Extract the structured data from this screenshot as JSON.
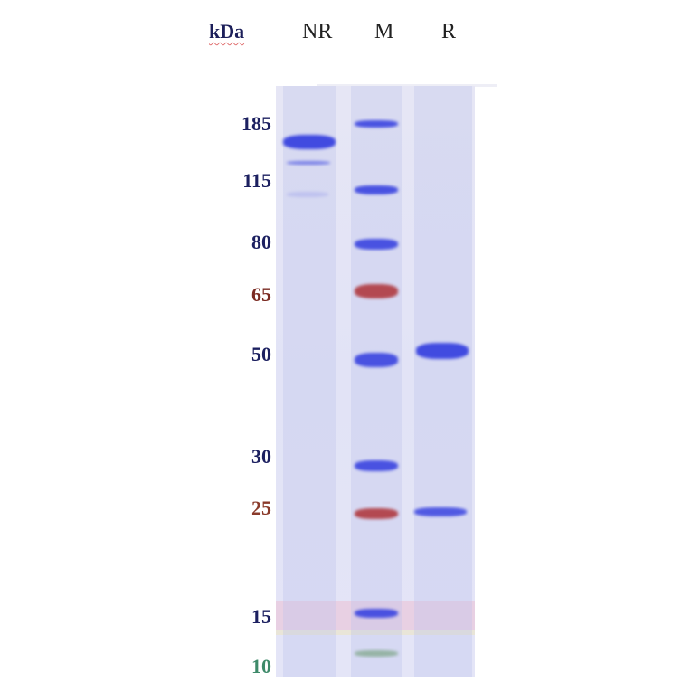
{
  "header": {
    "unit_label": "kDa",
    "lanes": [
      "NR",
      "M",
      "R"
    ]
  },
  "marker_labels": [
    {
      "kda": "185",
      "color": "#1c2060"
    },
    {
      "kda": "115",
      "color": "#1c2060"
    },
    {
      "kda": "80",
      "color": "#1c2060"
    },
    {
      "kda": "65",
      "color": "#7a2a22"
    },
    {
      "kda": "50",
      "color": "#1c2060"
    },
    {
      "kda": "30",
      "color": "#1c2060"
    },
    {
      "kda": "25",
      "color": "#8a3a2a"
    },
    {
      "kda": "15",
      "color": "#1c2060"
    },
    {
      "kda": "10",
      "color": "#3e8a6a"
    }
  ],
  "colors": {
    "gel": "#e3e4f6",
    "band_blue": "#3a44e0",
    "band_red": "#b03a40",
    "band_green": "#6a9a70"
  }
}
